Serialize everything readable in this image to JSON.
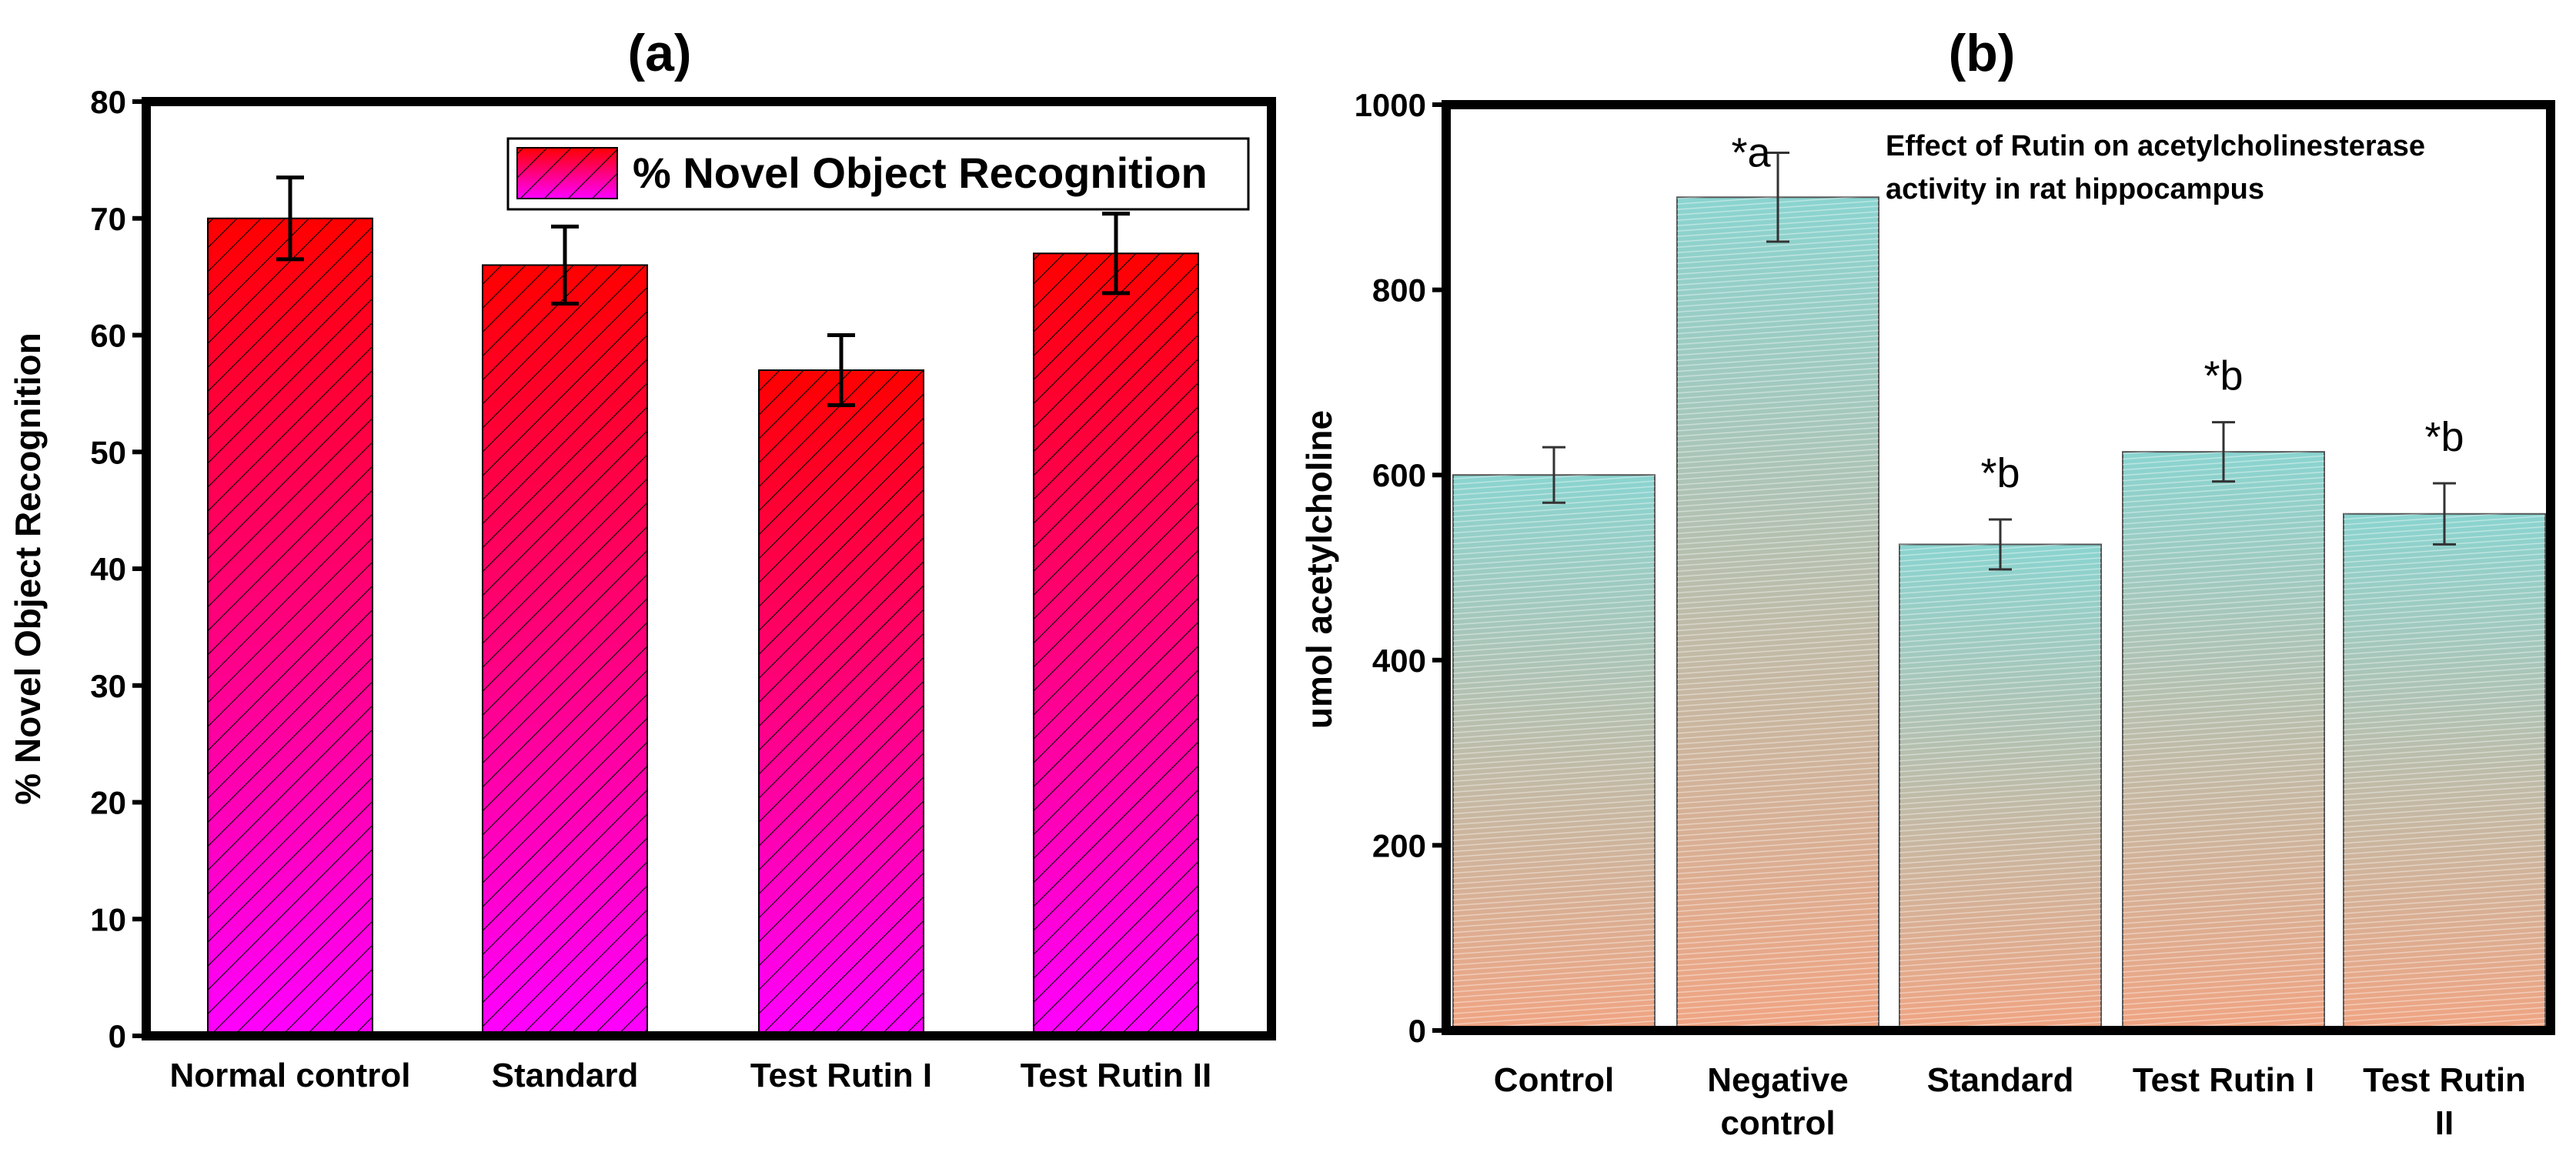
{
  "colors": {
    "chart_a_top": "#ff0000",
    "chart_a_bottom": "#ff00ff",
    "chart_b_top": "#8ad4d0",
    "chart_b_bottom": "#f0a482",
    "axis": "#000000"
  },
  "chart_data": [
    {
      "type": "bar",
      "panel_label": "(a)",
      "title": "",
      "xlabel": "",
      "ylabel": "% Novel Object Recognition",
      "ylim": [
        0,
        80
      ],
      "yticks": [
        0,
        10,
        20,
        30,
        40,
        50,
        60,
        70,
        80
      ],
      "grid": false,
      "legend": {
        "placement": "top-right",
        "entries": [
          "% Novel Object Recognition"
        ]
      },
      "categories": [
        "Normal control",
        "Standard",
        "Test Rutin I",
        "Test Rutin II"
      ],
      "series": [
        {
          "name": "% Novel Object Recognition",
          "values": [
            70,
            66,
            57,
            67
          ],
          "errors": [
            3.5,
            3.3,
            3.0,
            3.4
          ]
        }
      ],
      "annotations": []
    },
    {
      "type": "bar",
      "panel_label": "(b)",
      "title": "Effect of Rutin on acetylcholinesterase activity in rat hippocampus",
      "title_lines": [
        "Effect of Rutin on acetylcholinesterase",
        "activity in rat hippocampus"
      ],
      "xlabel": "",
      "ylabel": "umol acetylcholine",
      "ylim": [
        0,
        1000
      ],
      "yticks": [
        0,
        200,
        400,
        600,
        800,
        1000
      ],
      "grid": false,
      "legend": null,
      "categories": [
        "Control",
        "Negative control",
        "Standard",
        "Test Rutin I",
        "Test Rutin II"
      ],
      "category_lines": [
        [
          "Control"
        ],
        [
          "Negative",
          "control"
        ],
        [
          "Standard"
        ],
        [
          "Test Rutin I"
        ],
        [
          "Test Rutin",
          "II"
        ]
      ],
      "series": [
        {
          "name": "umol acetylcholine",
          "values": [
            600,
            900,
            525,
            625,
            558
          ],
          "errors": [
            30,
            48,
            27,
            32,
            33
          ]
        }
      ],
      "annotations": [
        "",
        "*a",
        "*b",
        "*b",
        "*b"
      ]
    }
  ]
}
